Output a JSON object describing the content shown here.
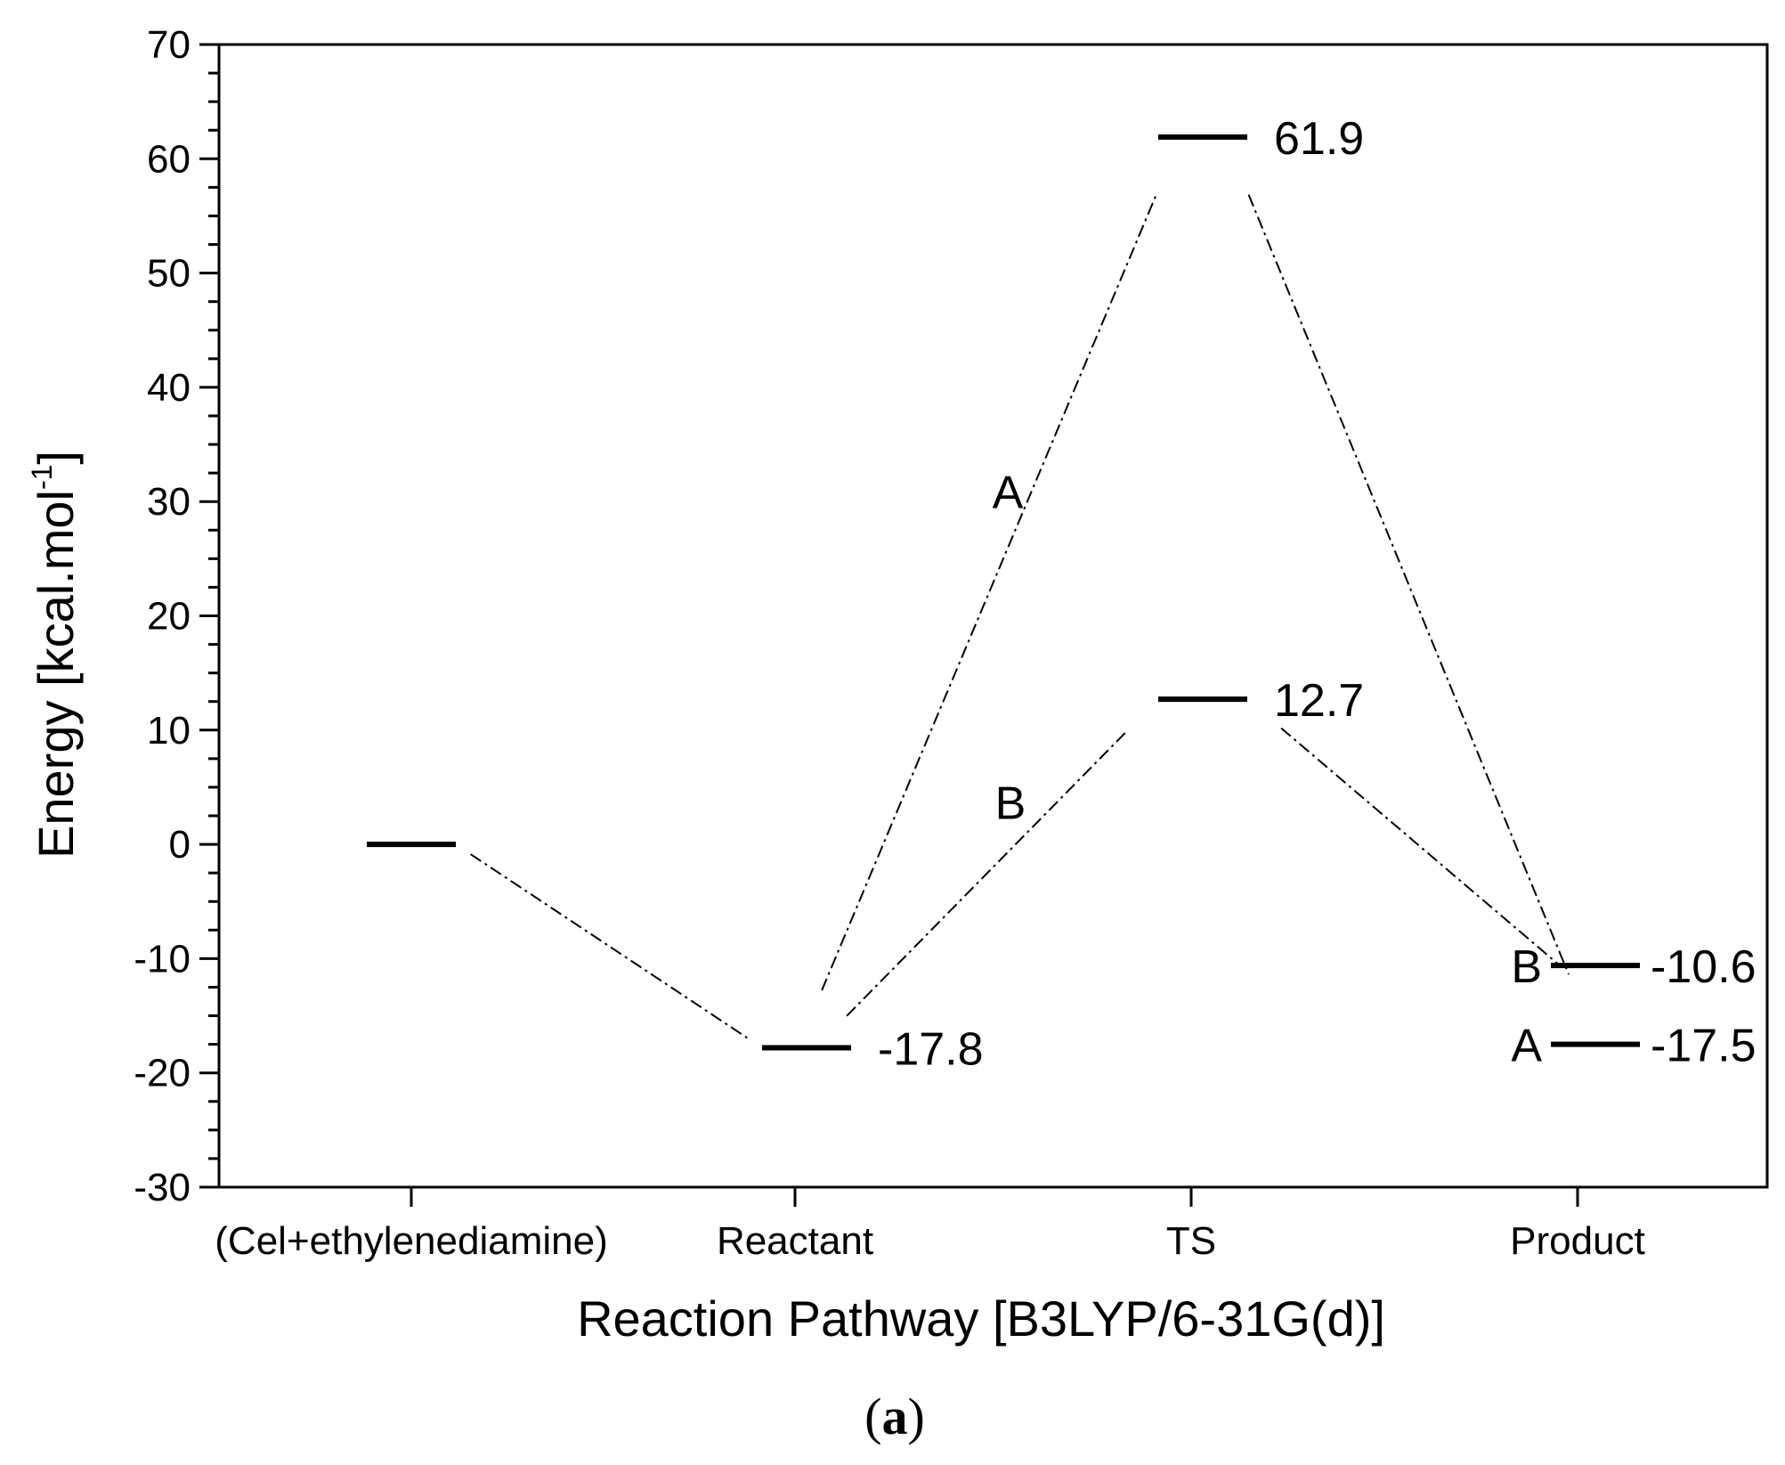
{
  "chart_data": {
    "type": "energy-level-diagram",
    "xlabel": "Reaction Pathway [B3LYP/6-31G(d)]",
    "ylabel": "Energy [kcal.mol",
    "ylabel_sup": "-1",
    "ylabel_end": "]",
    "ylim": [
      -30,
      70
    ],
    "y_major_ticks": [
      -30,
      -20,
      -10,
      0,
      10,
      20,
      30,
      40,
      50,
      60,
      70
    ],
    "y_minor_step": 2.5,
    "categories": [
      "(Cel+ethylenediamine)",
      "Reactant",
      "TS",
      "Product"
    ],
    "levels": [
      {
        "category": "(Cel+ethylenediamine)",
        "energy": 0,
        "label": ""
      },
      {
        "category": "Reactant",
        "energy": -17.8,
        "label": "-17.8"
      },
      {
        "category": "TS",
        "energy": 61.9,
        "label": "61.9",
        "path": "A"
      },
      {
        "category": "TS",
        "energy": 12.7,
        "label": "12.7",
        "path": "B"
      },
      {
        "category": "Product",
        "energy": -10.6,
        "label": "-10.6",
        "path": "B",
        "path_label": "B"
      },
      {
        "category": "Product",
        "energy": -17.5,
        "label": "-17.5",
        "path": "A",
        "path_label": "A"
      }
    ],
    "pathways": [
      {
        "name": "A",
        "energies": [
          0,
          -17.8,
          61.9,
          -17.5
        ]
      },
      {
        "name": "B",
        "energies": [
          0,
          -17.8,
          12.7,
          -10.6
        ]
      }
    ],
    "pathway_labels": [
      "A",
      "B"
    ],
    "grid": false
  },
  "caption": {
    "open": "(",
    "letter": "a",
    "close": ")"
  }
}
